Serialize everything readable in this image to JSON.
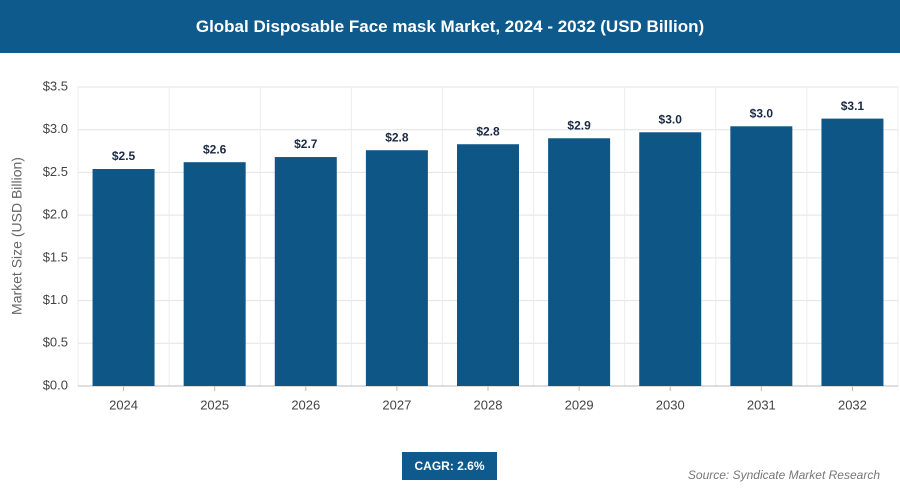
{
  "chart_data": {
    "type": "bar",
    "title": "Global Disposable Face mask Market, 2024 - 2032 (USD Billion)",
    "y_label": "Market Size (USD Billion)",
    "categories": [
      "2024",
      "2025",
      "2026",
      "2027",
      "2028",
      "2029",
      "2030",
      "2031",
      "2032"
    ],
    "values": [
      2.54,
      2.62,
      2.68,
      2.76,
      2.83,
      2.9,
      2.97,
      3.04,
      3.13
    ],
    "value_labels": [
      "$2.5",
      "$2.6",
      "$2.7",
      "$2.8",
      "$2.8",
      "$2.9",
      "$3.0",
      "$3.0",
      "$3.1"
    ],
    "color": "#0d5686",
    "ylim": [
      0,
      3.5
    ],
    "yticks": [
      {
        "value": 0,
        "label": "$0.0"
      },
      {
        "value": 0.5,
        "label": "$0.5"
      },
      {
        "value": 1,
        "label": "$1.0"
      },
      {
        "value": 1.5,
        "label": "$1.5"
      },
      {
        "value": 2,
        "label": "$2.0"
      },
      {
        "value": 2.5,
        "label": "$2.5"
      },
      {
        "value": 3,
        "label": "$3.0"
      },
      {
        "value": 3.5,
        "label": "$3.5"
      }
    ],
    "grid": true,
    "cagr": "CAGR: 2.6%",
    "source": "Source: Syndicate Market Research"
  }
}
